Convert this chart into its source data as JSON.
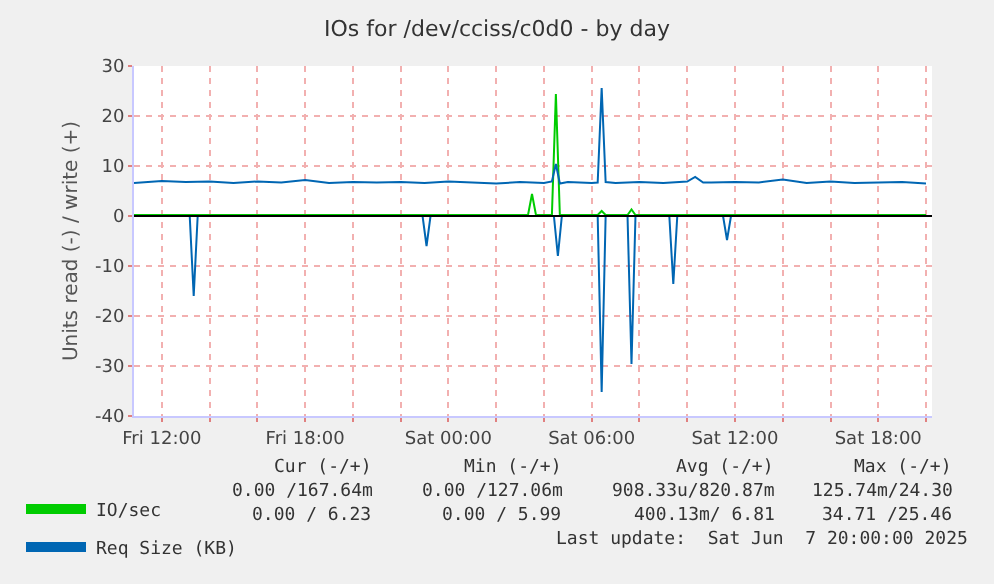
{
  "chart_data": {
    "type": "line",
    "title": "IOs for /dev/cciss/c0d0 - by day",
    "ylabel": "Units read (-) / write (+)",
    "xlim": [
      "2025-06-06T10:50",
      "2025-06-07T20:15"
    ],
    "xticks": [
      {
        "value": "2025-06-06T12:00",
        "label": "Fri 12:00"
      },
      {
        "value": "2025-06-06T14:00",
        "label": null
      },
      {
        "value": "2025-06-06T16:00",
        "label": null
      },
      {
        "value": "2025-06-06T18:00",
        "label": "Fri 18:00"
      },
      {
        "value": "2025-06-06T20:00",
        "label": null
      },
      {
        "value": "2025-06-06T22:00",
        "label": null
      },
      {
        "value": "2025-06-07T00:00",
        "label": "Sat 00:00"
      },
      {
        "value": "2025-06-07T02:00",
        "label": null
      },
      {
        "value": "2025-06-07T04:00",
        "label": null
      },
      {
        "value": "2025-06-07T06:00",
        "label": "Sat 06:00"
      },
      {
        "value": "2025-06-07T08:00",
        "label": null
      },
      {
        "value": "2025-06-07T10:00",
        "label": null
      },
      {
        "value": "2025-06-07T12:00",
        "label": "Sat 12:00"
      },
      {
        "value": "2025-06-07T14:00",
        "label": null
      },
      {
        "value": "2025-06-07T16:00",
        "label": null
      },
      {
        "value": "2025-06-07T18:00",
        "label": "Sat 18:00"
      },
      {
        "value": "2025-06-07T20:00",
        "label": null
      }
    ],
    "ylim": [
      -40,
      30
    ],
    "yticks": [
      -40,
      -30,
      -20,
      -10,
      0,
      10,
      20,
      30
    ],
    "grid": true,
    "legend": "bottom left",
    "marker": "none",
    "line_style": "solid",
    "ref_lines": [
      {
        "axis": "y",
        "value": 0,
        "label": null,
        "color": "#000000"
      }
    ],
    "series": [
      {
        "name": "IO/sec",
        "color": "#00cc00",
        "x": [
          "2025-06-06T10:50",
          "2025-06-06T14:00",
          "2025-06-06T18:00",
          "2025-06-06T22:00",
          "2025-06-07T02:00",
          "2025-06-07T03:20",
          "2025-06-07T03:30",
          "2025-06-07T03:40",
          "2025-06-07T04:20",
          "2025-06-07T04:30",
          "2025-06-07T04:40",
          "2025-06-07T06:15",
          "2025-06-07T06:25",
          "2025-06-07T06:35",
          "2025-06-07T07:30",
          "2025-06-07T07:40",
          "2025-06-07T07:50",
          "2025-06-07T12:00",
          "2025-06-07T16:00",
          "2025-06-07T20:00"
        ],
        "values": [
          0.2,
          0.2,
          0.2,
          0.2,
          0.2,
          0.2,
          4.4,
          0.2,
          0.2,
          24.4,
          0.2,
          0.2,
          1,
          0.2,
          0.2,
          1.3,
          0.2,
          0.2,
          0.2,
          0.2
        ]
      },
      {
        "color": "#0066b3",
        "x": [
          "2025-06-06T10:50",
          "2025-06-06T13:10",
          "2025-06-06T13:20",
          "2025-06-06T13:30",
          "2025-06-06T22:55",
          "2025-06-06T23:05",
          "2025-06-06T23:15",
          "2025-06-07T04:25",
          "2025-06-07T04:35",
          "2025-06-07T04:45",
          "2025-06-07T06:15",
          "2025-06-07T06:25",
          "2025-06-07T06:35",
          "2025-06-07T07:30",
          "2025-06-07T07:40",
          "2025-06-07T07:50",
          "2025-06-07T09:15",
          "2025-06-07T09:25",
          "2025-06-07T09:35",
          "2025-06-07T11:30",
          "2025-06-07T11:40",
          "2025-06-07T11:50",
          "2025-06-07T20:00"
        ],
        "values": [
          0,
          0,
          -16,
          0,
          0,
          -6,
          0,
          0,
          -8,
          0,
          0,
          -35.2,
          0,
          0,
          -29.6,
          0,
          0,
          -13.6,
          0,
          0,
          -4.8,
          0,
          0
        ]
      },
      {
        "name": "Req Size (KB)",
        "color": "#0066b3",
        "x": [
          "2025-06-06T10:50",
          "2025-06-06T12:00",
          "2025-06-06T13:00",
          "2025-06-06T14:00",
          "2025-06-06T15:00",
          "2025-06-06T16:00",
          "2025-06-06T17:00",
          "2025-06-06T18:00",
          "2025-06-06T19:00",
          "2025-06-06T20:00",
          "2025-06-06T21:00",
          "2025-06-06T22:00",
          "2025-06-06T23:00",
          "2025-06-07T00:00",
          "2025-06-07T01:00",
          "2025-06-07T02:00",
          "2025-06-07T03:00",
          "2025-06-07T04:00",
          "2025-06-07T04:20",
          "2025-06-07T04:30",
          "2025-06-07T04:40",
          "2025-06-07T05:00",
          "2025-06-07T06:00",
          "2025-06-07T06:15",
          "2025-06-07T06:25",
          "2025-06-07T06:35",
          "2025-06-07T07:00",
          "2025-06-07T08:00",
          "2025-06-07T09:00",
          "2025-06-07T10:00",
          "2025-06-07T10:20",
          "2025-06-07T10:40",
          "2025-06-07T11:00",
          "2025-06-07T12:00",
          "2025-06-07T13:00",
          "2025-06-07T14:00",
          "2025-06-07T15:00",
          "2025-06-07T16:00",
          "2025-06-07T17:00",
          "2025-06-07T18:00",
          "2025-06-07T19:00",
          "2025-06-07T20:00"
        ],
        "values": [
          6.6,
          7.0,
          6.8,
          6.9,
          6.6,
          6.9,
          6.7,
          7.2,
          6.6,
          6.8,
          6.7,
          6.8,
          6.6,
          6.9,
          6.7,
          6.5,
          6.8,
          6.6,
          6.9,
          10.4,
          6.5,
          6.8,
          6.6,
          6.7,
          25.6,
          6.8,
          6.6,
          6.8,
          6.6,
          6.9,
          7.8,
          6.7,
          6.7,
          6.8,
          6.7,
          7.3,
          6.6,
          6.9,
          6.6,
          6.7,
          6.8,
          6.5
        ]
      }
    ],
    "annotations": [
      "Cur (-/+)",
      "Min (-/+)",
      "Avg (-/+)",
      "Max (-/+)",
      "0.00 /167.64m",
      "0.00 /127.06m",
      "908.33u/820.87m",
      "125.74m/24.30",
      "0.00 / 6.23",
      "0.00 / 5.99",
      "400.13m/ 6.81",
      "34.71 /25.46",
      "Last update:  Sat Jun  7 20:00:00 2025"
    ]
  }
}
